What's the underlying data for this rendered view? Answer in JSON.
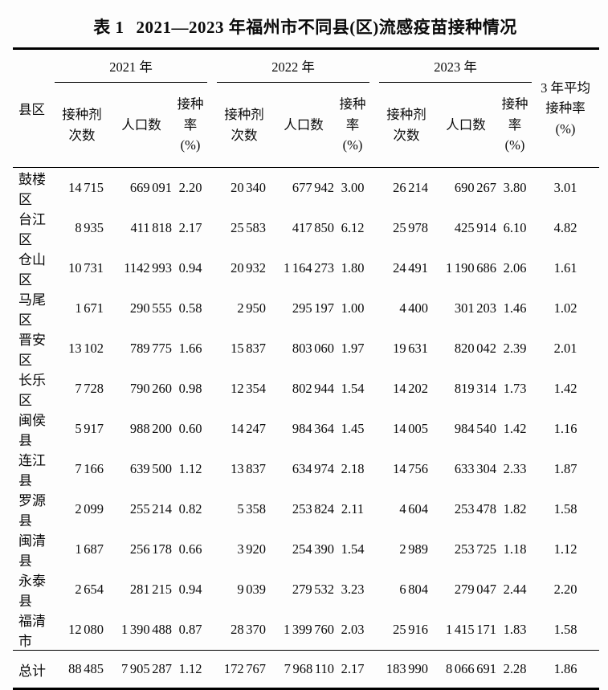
{
  "caption": {
    "label": "表 1",
    "text": "2021—2023 年福州市不同县(区)流感疫苗接种情况"
  },
  "table": {
    "district_header": "县区",
    "year_groups": [
      "2021 年",
      "2022 年",
      "2023 年"
    ],
    "sub_columns": {
      "doses": [
        "接种剂",
        "次数"
      ],
      "population": "人口数",
      "rate": [
        "接种率",
        "(%)"
      ]
    },
    "avg_header": [
      "3 年平均",
      "接种率",
      "(%)"
    ],
    "rows": [
      {
        "cells": [
          "鼓楼区",
          "14 715",
          "669 091",
          "2.20",
          "20 340",
          "677 942",
          "3.00",
          "26 214",
          "690 267",
          "3.80",
          "3.01"
        ]
      },
      {
        "cells": [
          "台江区",
          "8 935",
          "411 818",
          "2.17",
          "25 583",
          "417 850",
          "6.12",
          "25 978",
          "425 914",
          "6.10",
          "4.82"
        ]
      },
      {
        "cells": [
          "仓山区",
          "10 731",
          "1142 993",
          "0.94",
          "20 932",
          "1 164 273",
          "1.80",
          "24 491",
          "1 190 686",
          "2.06",
          "1.61"
        ]
      },
      {
        "cells": [
          "马尾区",
          "1 671",
          "290 555",
          "0.58",
          "2 950",
          "295 197",
          "1.00",
          "4 400",
          "301 203",
          "1.46",
          "1.02"
        ]
      },
      {
        "cells": [
          "晋安区",
          "13 102",
          "789 775",
          "1.66",
          "15 837",
          "803 060",
          "1.97",
          "19 631",
          "820 042",
          "2.39",
          "2.01"
        ]
      },
      {
        "cells": [
          "长乐区",
          "7 728",
          "790 260",
          "0.98",
          "12 354",
          "802 944",
          "1.54",
          "14 202",
          "819 314",
          "1.73",
          "1.42"
        ]
      },
      {
        "cells": [
          "闽侯县",
          "5 917",
          "988 200",
          "0.60",
          "14 247",
          "984 364",
          "1.45",
          "14 005",
          "984 540",
          "1.42",
          "1.16"
        ]
      },
      {
        "cells": [
          "连江县",
          "7 166",
          "639 500",
          "1.12",
          "13 837",
          "634 974",
          "2.18",
          "14 756",
          "633 304",
          "2.33",
          "1.87"
        ]
      },
      {
        "cells": [
          "罗源县",
          "2 099",
          "255 214",
          "0.82",
          "5 358",
          "253 824",
          "2.11",
          "4 604",
          "253 478",
          "1.82",
          "1.58"
        ]
      },
      {
        "cells": [
          "闽清县",
          "1 687",
          "256 178",
          "0.66",
          "3 920",
          "254 390",
          "1.54",
          "2 989",
          "253 725",
          "1.18",
          "1.12"
        ]
      },
      {
        "cells": [
          "永泰县",
          "2 654",
          "281 215",
          "0.94",
          "9 039",
          "279 532",
          "3.23",
          "6 804",
          "279 047",
          "2.44",
          "2.20"
        ]
      },
      {
        "cells": [
          "福清市",
          "12 080",
          "1 390 488",
          "0.87",
          "28 370",
          "1 399 760",
          "2.03",
          "25 916",
          "1 415 171",
          "1.83",
          "1.58"
        ]
      }
    ],
    "total": {
      "cells": [
        "总计",
        "88 485",
        "7 905 287",
        "1.12",
        "172 767",
        "7 968 110",
        "2.17",
        "183 990",
        "8 066 691",
        "2.28",
        "1.86"
      ]
    }
  }
}
